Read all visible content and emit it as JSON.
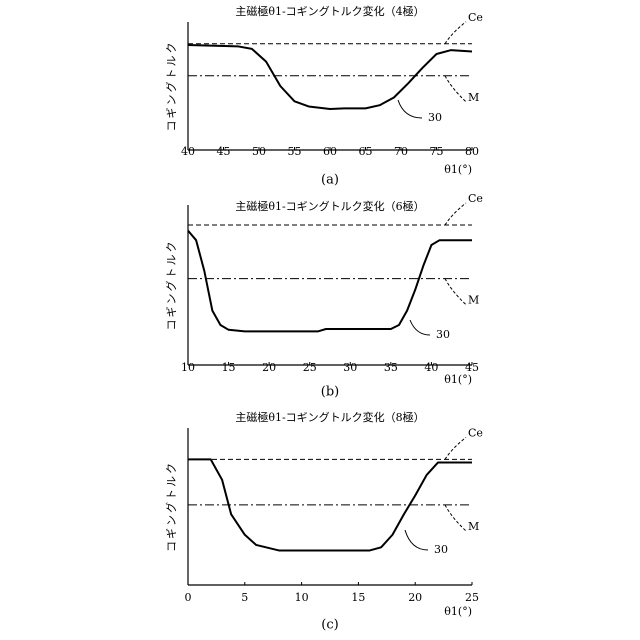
{
  "chart_data": [
    {
      "type": "line",
      "title": "主磁極θ1-コギングトルク変化（4極）",
      "y_label": "コギングトルク",
      "x_label": "θ1(°)",
      "caption": "(a)",
      "x": [
        40,
        47,
        49,
        51,
        53,
        55,
        57,
        60,
        62,
        65,
        67,
        69,
        71,
        73,
        75,
        77,
        80
      ],
      "series": [
        {
          "name": "30",
          "color": "#000000",
          "values": [
            82,
            81,
            79,
            69,
            50,
            38,
            34,
            32,
            32.5,
            32.5,
            35,
            41,
            52,
            64,
            75,
            78,
            77
          ]
        }
      ],
      "reference_lines": [
        {
          "name": "Ce",
          "value": 83,
          "style": "dashed"
        },
        {
          "name": "M",
          "value": 58,
          "style": "dashdot"
        }
      ],
      "xlim": [
        40,
        80
      ],
      "xticks": [
        40,
        45,
        50,
        55,
        60,
        65,
        70,
        75,
        80
      ],
      "ylim": [
        0,
        100
      ]
    },
    {
      "type": "line",
      "title": "主磁極θ1-コギングトルク変化（6極）",
      "y_label": "コギングトルク",
      "x_label": "θ1(°)",
      "caption": "(b)",
      "x": [
        10,
        11,
        12,
        13,
        14,
        15,
        17,
        20,
        25,
        26,
        27,
        30,
        35,
        36,
        37,
        38,
        39,
        40,
        41,
        45
      ],
      "series": [
        {
          "name": "30",
          "color": "#000000",
          "values": [
            84,
            78,
            59,
            34,
            25,
            22,
            21,
            21,
            21,
            21,
            22.5,
            22.5,
            22.5,
            25,
            34,
            47,
            62,
            75,
            78,
            78
          ]
        }
      ],
      "reference_lines": [
        {
          "name": "Ce",
          "value": 87.5,
          "style": "dashed"
        },
        {
          "name": "M",
          "value": 54,
          "style": "dashdot"
        }
      ],
      "xlim": [
        10,
        45
      ],
      "xticks": [
        10,
        15,
        20,
        25,
        30,
        35,
        40,
        45
      ],
      "ylim": [
        0,
        100
      ]
    },
    {
      "type": "line",
      "title": "主磁極θ1-コギングトルク変化（8極）",
      "y_label": "コギングトルク",
      "x_label": "θ1(°)",
      "caption": "(c)",
      "x": [
        0,
        2,
        3,
        3.8,
        5,
        6,
        8,
        12,
        16,
        17,
        18,
        19,
        20,
        21,
        22,
        23,
        25
      ],
      "series": [
        {
          "name": "30",
          "color": "#000000",
          "values": [
            80,
            80,
            67,
            45,
            32,
            25.5,
            22,
            22,
            22,
            24,
            32,
            45,
            57,
            70,
            78,
            78,
            78
          ]
        }
      ],
      "reference_lines": [
        {
          "name": "Ce",
          "value": 80,
          "style": "dashed"
        },
        {
          "name": "M",
          "value": 51,
          "style": "dashdot"
        }
      ],
      "xlim": [
        0,
        25
      ],
      "xticks": [
        0,
        5,
        10,
        15,
        20,
        25
      ],
      "ylim": [
        0,
        100
      ]
    }
  ]
}
